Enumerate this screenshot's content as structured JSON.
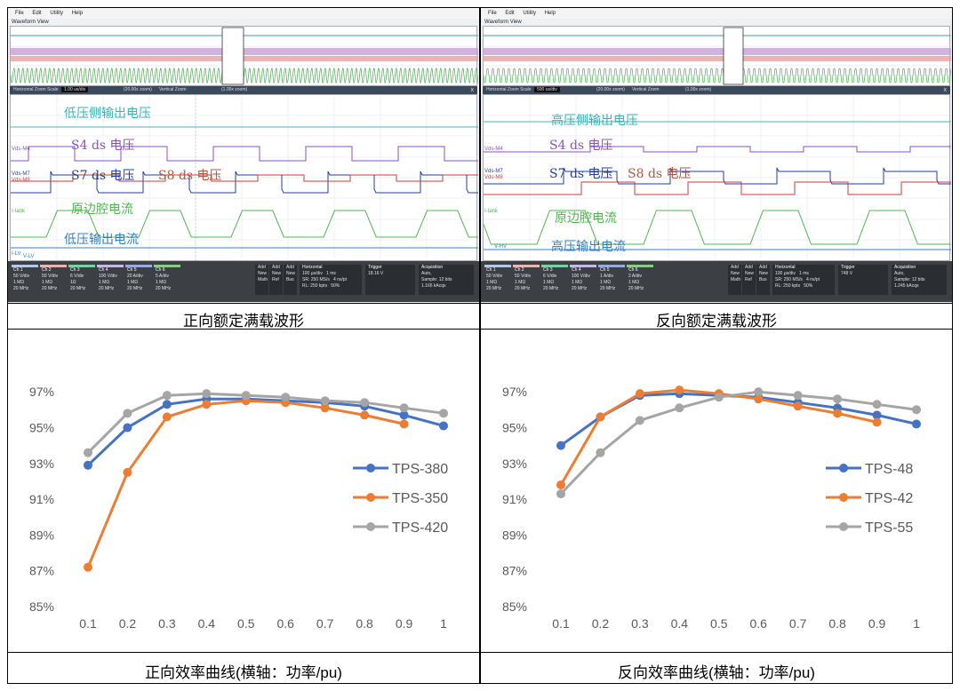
{
  "scope_ui": {
    "menu": [
      "File",
      "Edit",
      "Utility",
      "Help"
    ],
    "waveform_view_title": "Waveform View",
    "zoom_bar": {
      "zoom_label": "Horizontal Zoom Scale",
      "vertical_zoom_label": "Vertical Zoom",
      "left_scale": "1.00 us/div",
      "right_scale": "500 us/div",
      "left_hz_zoom": "(20.00x zoom)",
      "right_hz_zoom": "(20.00x zoom)",
      "vz_zoom": "(1.00x zoom)",
      "close_icon": "x"
    },
    "left_panel": {
      "labels": {
        "ch1": "低压侧输出电压",
        "ch2": "S4 ds 电压",
        "ch3": "S7 ds 电压",
        "ch4": "S8 ds 电压",
        "ch5": "原边腔电流",
        "ch6": "低压输出电流"
      },
      "tags": {
        "vds_m4": "Vds-M4",
        "vds_m7": "Vds-M7",
        "vds_m8": "Vds-M8",
        "i_tank": "I-tank",
        "i_lv": "I-LV",
        "v_lv": "V-LV"
      },
      "channels": [
        {
          "head": "Ch 1",
          "l1": "50 V/div",
          "l2": "1 MΩ",
          "l3": "20 MHz",
          "color": "#b5c8e8"
        },
        {
          "head": "Ch 2",
          "l1": "50 V/div",
          "l2": "1 MΩ",
          "l3": "20 MHz",
          "color": "#e8b4b4"
        },
        {
          "head": "Ch 3",
          "l1": "6 V/div",
          "l2": "1Ω",
          "l3": "20 MHz",
          "color": "#7ad0a5"
        },
        {
          "head": "Ch 4",
          "l1": "100 V/div",
          "l2": "1 MΩ",
          "l3": "20 MHz",
          "color": "#c8b8e8"
        },
        {
          "head": "Ch 5",
          "l1": "20 A/div",
          "l2": "1 MΩ",
          "l3": "20 MHz",
          "color": "#9ad"
        },
        {
          "head": "Ch 6",
          "l1": "5 A/div",
          "l2": "1 MΩ",
          "l3": "20 MHz",
          "color": "#8c8"
        }
      ],
      "buttons": [
        "Add New Math",
        "Add New Ref",
        "Add New Bus"
      ],
      "horizontal": {
        "head": "Horizontal",
        "l1": "100 µs/div",
        "l2": "SR: 250 MS/s",
        "l3": "RL: 250 kpts",
        "l4": "1 ms",
        "l5": "4 ns/pt",
        "l6": "50%"
      },
      "trigger": {
        "head": "Trigger",
        "l1": "18.16 V"
      },
      "acquisition": {
        "head": "Acquisition",
        "l1": "Auto,",
        "l2": "Sample: 12 bits",
        "l3": "1.166 kAcqs"
      }
    },
    "right_panel": {
      "labels": {
        "ch1": "高压侧输出电压",
        "ch2": "S4 ds 电压",
        "ch3": "S7 ds 电压",
        "ch4": "S8 ds 电压",
        "ch5": "原边腔电流",
        "ch6": "高压输出电流"
      },
      "tags": {
        "vds_m4": "Vds-M4",
        "vds_m7": "Vds-M7",
        "vds_m8": "Vds-M8",
        "i_tank": "I-tank",
        "v_hv": "V-HV"
      },
      "channels": [
        {
          "head": "Ch 1",
          "l1": "50 V/div",
          "l2": "1 MΩ",
          "l3": "20 MHz",
          "color": "#b5c8e8"
        },
        {
          "head": "Ch 2",
          "l1": "50 V/div",
          "l2": "1 MΩ",
          "l3": "20 MHz",
          "color": "#e8b4b4"
        },
        {
          "head": "Ch 3",
          "l1": "6 V/div",
          "l2": "1 MΩ",
          "l3": "20 MHz",
          "color": "#7ad0a5"
        },
        {
          "head": "Ch 4",
          "l1": "100 V/div",
          "l2": "1 MΩ",
          "l3": "20 MHz",
          "color": "#c8b8e8"
        },
        {
          "head": "Ch 5",
          "l1": "1 A/div",
          "l2": "1 MΩ",
          "l3": "20 MHz",
          "color": "#9ad"
        },
        {
          "head": "Ch 6",
          "l1": "2 A/div",
          "l2": "1 MΩ",
          "l3": "20 MHz",
          "color": "#8c8"
        }
      ],
      "buttons": [
        "Add New Math",
        "Add New Ref",
        "Add New Bus"
      ],
      "horizontal": {
        "head": "Horizontal",
        "l1": "100 µs/div",
        "l2": "SR: 250 MS/s",
        "l3": "RL: 250 kpts",
        "l4": "1 ms",
        "l5": "4 ns/pt",
        "l6": "50%"
      },
      "trigger": {
        "head": "Trigger",
        "l1": "748 V"
      },
      "acquisition": {
        "head": "Acquisition",
        "l1": "Auto,",
        "l2": "Sample: 12 bits",
        "l3": "1.245 kAcqs"
      }
    }
  },
  "captions": {
    "top_left": "正向额定满载波形",
    "top_right": "反向额定满载波形",
    "bottom_left": "正向效率曲线(横轴：功率/pu)",
    "bottom_right": "反向效率曲线(横轴：功率/pu)"
  },
  "colors": {
    "blue": "#4472c4",
    "orange": "#ed7d31",
    "gray": "#a5a5a5"
  },
  "chart_data": [
    {
      "type": "line",
      "title": "",
      "xlabel": "",
      "ylabel": "",
      "categories": [
        "0.1",
        "0.2",
        "0.3",
        "0.4",
        "0.5",
        "0.6",
        "0.7",
        "0.8",
        "0.9",
        "1"
      ],
      "y_ticks": [
        "85%",
        "87%",
        "89%",
        "91%",
        "93%",
        "95%",
        "97%"
      ],
      "ylim": [
        85,
        98
      ],
      "grid": false,
      "legend_position": "right",
      "series": [
        {
          "name": "TPS-380",
          "color": "#4472c4",
          "values": [
            92.9,
            95.0,
            96.3,
            96.6,
            96.6,
            96.5,
            96.4,
            96.2,
            95.7,
            95.1
          ]
        },
        {
          "name": "TPS-350",
          "color": "#ed7d31",
          "values": [
            87.2,
            92.5,
            95.6,
            96.3,
            96.5,
            96.4,
            96.1,
            95.7,
            95.2,
            null
          ]
        },
        {
          "name": "TPS-420",
          "color": "#a5a5a5",
          "values": [
            93.6,
            95.8,
            96.8,
            96.9,
            96.8,
            96.7,
            96.5,
            96.4,
            96.1,
            95.8
          ]
        }
      ]
    },
    {
      "type": "line",
      "title": "",
      "xlabel": "",
      "ylabel": "",
      "categories": [
        "0.1",
        "0.2",
        "0.3",
        "0.4",
        "0.5",
        "0.6",
        "0.7",
        "0.8",
        "0.9",
        "1"
      ],
      "y_ticks": [
        "85%",
        "87%",
        "89%",
        "91%",
        "93%",
        "95%",
        "97%"
      ],
      "ylim": [
        85,
        98
      ],
      "grid": false,
      "legend_position": "right",
      "series": [
        {
          "name": "TPS-48",
          "color": "#4472c4",
          "values": [
            94.0,
            95.6,
            96.8,
            96.9,
            96.8,
            96.7,
            96.4,
            96.1,
            95.7,
            95.2
          ]
        },
        {
          "name": "TPS-42",
          "color": "#ed7d31",
          "values": [
            91.8,
            95.6,
            96.9,
            97.1,
            96.9,
            96.6,
            96.2,
            95.8,
            95.3,
            null
          ]
        },
        {
          "name": "TPS-55",
          "color": "#a5a5a5",
          "values": [
            91.3,
            93.6,
            95.4,
            96.1,
            96.7,
            97.0,
            96.8,
            96.6,
            96.3,
            96.0
          ]
        }
      ]
    }
  ]
}
